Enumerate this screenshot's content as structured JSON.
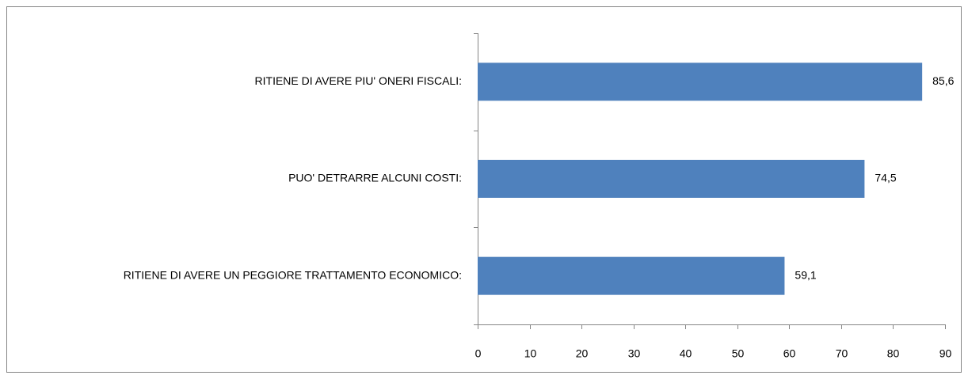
{
  "chart_data": {
    "type": "barh",
    "categories": [
      "RITIENE DI AVERE PIU' ONERI FISCALI:",
      "PUO' DETRARRE ALCUNI COSTI:",
      "RITIENE DI AVERE UN PEGGIORE TRATTAMENTO ECONOMICO:"
    ],
    "values": [
      85.6,
      74.5,
      59.1
    ],
    "value_labels": [
      "85,6",
      "74,5",
      "59,1"
    ],
    "color": "#4f81bd",
    "xlim": [
      0,
      90
    ],
    "xticks": [
      0,
      10,
      20,
      30,
      40,
      50,
      60,
      70,
      80,
      90
    ],
    "grid": false
  }
}
